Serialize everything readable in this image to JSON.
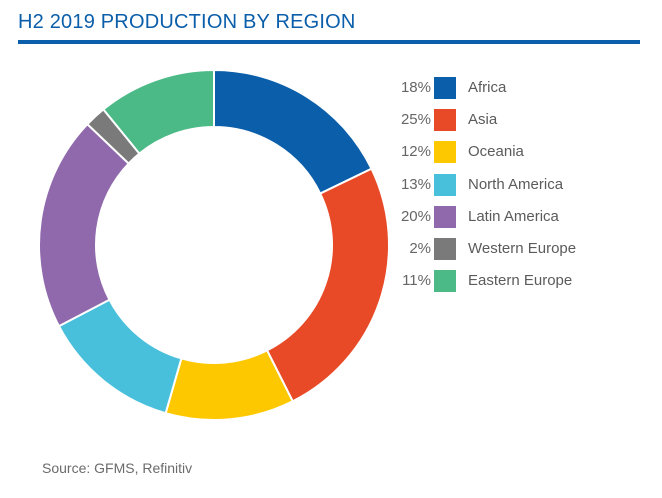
{
  "header": {
    "title": "H2 2019 PRODUCTION BY REGION"
  },
  "footer": {
    "source": "Source: GFMS, Refinitiv"
  },
  "colors": {
    "accent": "#0a5eaa"
  },
  "chart_data": {
    "type": "pie",
    "donut": true,
    "title": "H2 2019 PRODUCTION BY REGION",
    "legend_position": "right",
    "value_unit": "%",
    "slices": [
      {
        "label": "Africa",
        "value": 18,
        "display": "18%",
        "color": "#0a5eaa"
      },
      {
        "label": "Asia",
        "value": 25,
        "display": "25%",
        "color": "#e84a27"
      },
      {
        "label": "Oceania",
        "value": 12,
        "display": "12%",
        "color": "#fdc800"
      },
      {
        "label": "North America",
        "value": 13,
        "display": "13%",
        "color": "#48bfdb"
      },
      {
        "label": "Latin America",
        "value": 20,
        "display": "20%",
        "color": "#8f69ac"
      },
      {
        "label": "Western Europe",
        "value": 2,
        "display": "2%",
        "color": "#7a7a7a"
      },
      {
        "label": "Eastern Europe",
        "value": 11,
        "display": "11%",
        "color": "#4cba86"
      }
    ]
  }
}
